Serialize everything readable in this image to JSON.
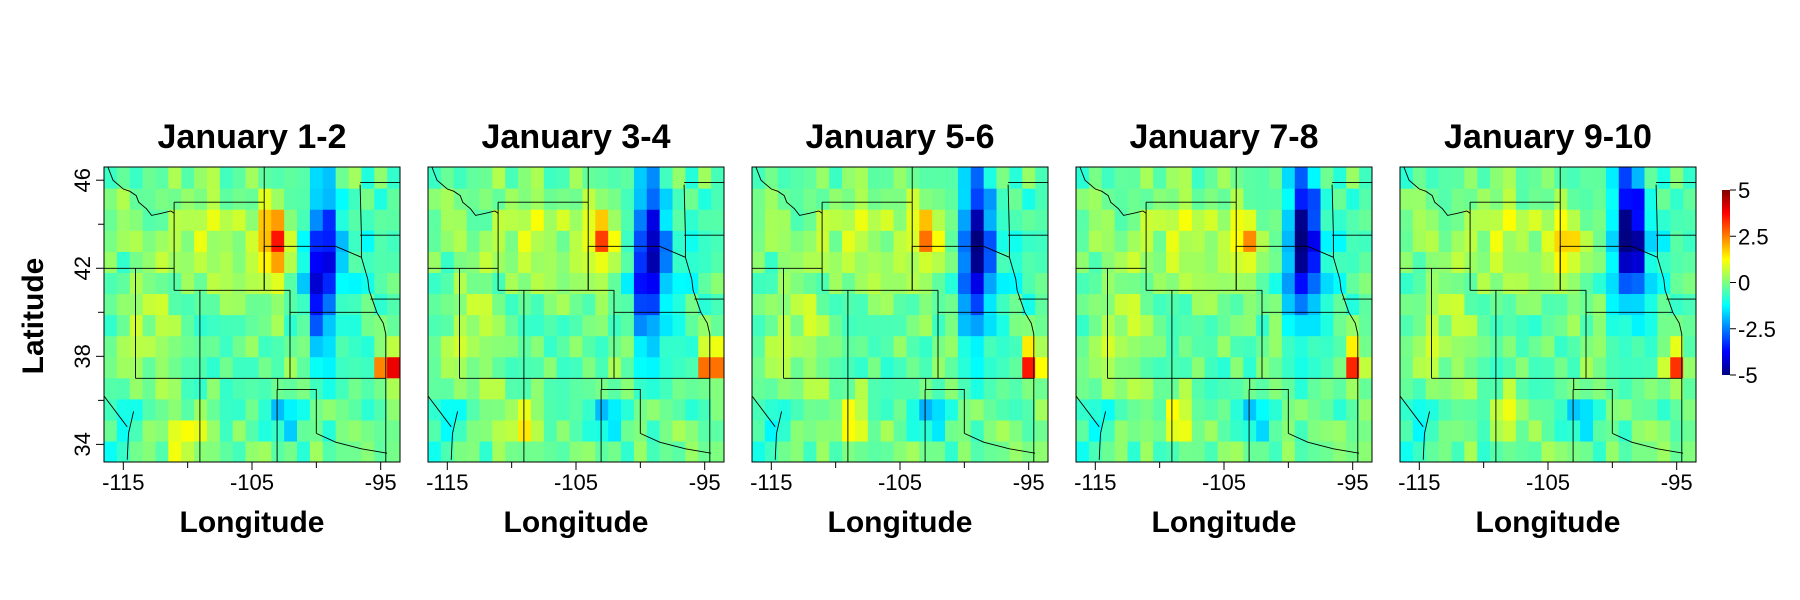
{
  "chart_data": {
    "type": "heatmap",
    "colorbar": {
      "min": -5,
      "max": 5,
      "ticks": [
        "5",
        "2.5",
        "0",
        "-2.5",
        "-5"
      ],
      "colors": [
        "#00007f",
        "#0000ff",
        "#007fff",
        "#00ffff",
        "#7fff7f",
        "#ffff00",
        "#ff7f00",
        "#ff0000",
        "#7f0000"
      ]
    },
    "xlim": [
      -116.5,
      -93.5
    ],
    "ylim": [
      33.2,
      46.6
    ],
    "xlabel": "Longitude",
    "ylabel": "Latitude",
    "x_ticks": [
      -115,
      -105,
      -95
    ],
    "x_tick_labels": [
      "-115",
      "-105",
      "-95"
    ],
    "y_ticks": [
      34,
      38,
      42,
      46
    ],
    "y_tick_labels": [
      "34",
      "38",
      "42",
      "46"
    ],
    "grid": {
      "lon_min": -116.5,
      "lon_max": -93.5,
      "lat_min": 33.2,
      "lat_max": 46.6,
      "cols": 23,
      "rows": 14
    },
    "panels": [
      {
        "title": "January 1-2",
        "features": [
          {
            "kind": "warm_streak",
            "lon": -103.2,
            "lat": 43.2,
            "amp": 3.8,
            "sx": 0.9,
            "sy": 1.6
          },
          {
            "kind": "cold_band",
            "lon": -99.5,
            "lat": 42.0,
            "amp": -4.2,
            "sx": 1.3,
            "sy": 3.6
          },
          {
            "kind": "warm_spot",
            "lon": -94.3,
            "lat": 37.6,
            "amp": 4.6,
            "sx": 0.9,
            "sy": 0.8
          },
          {
            "kind": "warm_patch",
            "lon": -110.0,
            "lat": 34.3,
            "amp": 1.8,
            "sx": 1.5,
            "sy": 1.0
          },
          {
            "kind": "cold_patch",
            "lon": -102.5,
            "lat": 35.3,
            "amp": -1.8,
            "sx": 1.2,
            "sy": 1.0
          }
        ]
      },
      {
        "title": "January 3-4",
        "features": [
          {
            "kind": "warm_streak",
            "lon": -103.0,
            "lat": 43.4,
            "amp": 3.2,
            "sx": 0.9,
            "sy": 1.3
          },
          {
            "kind": "cold_band",
            "lon": -99.2,
            "lat": 42.3,
            "amp": -4.5,
            "sx": 1.3,
            "sy": 3.8
          },
          {
            "kind": "warm_spot",
            "lon": -94.5,
            "lat": 37.8,
            "amp": 4.4,
            "sx": 0.8,
            "sy": 0.9
          },
          {
            "kind": "warm_patch",
            "lon": -109.5,
            "lat": 34.8,
            "amp": 1.6,
            "sx": 1.4,
            "sy": 1.2
          },
          {
            "kind": "cold_patch",
            "lon": -102.5,
            "lat": 35.3,
            "amp": -1.8,
            "sx": 1.2,
            "sy": 1.0
          }
        ]
      },
      {
        "title": "January 5-6",
        "features": [
          {
            "kind": "warm_streak",
            "lon": -103.0,
            "lat": 43.5,
            "amp": 2.9,
            "sx": 0.9,
            "sy": 1.2
          },
          {
            "kind": "cold_band",
            "lon": -99.0,
            "lat": 42.6,
            "amp": -4.7,
            "sx": 1.2,
            "sy": 3.8
          },
          {
            "kind": "warm_spot",
            "lon": -94.8,
            "lat": 37.8,
            "amp": 4.3,
            "sx": 0.8,
            "sy": 0.9
          },
          {
            "kind": "warm_patch",
            "lon": -109.0,
            "lat": 35.0,
            "amp": 1.5,
            "sx": 1.4,
            "sy": 1.2
          },
          {
            "kind": "cold_patch",
            "lon": -102.5,
            "lat": 35.3,
            "amp": -1.8,
            "sx": 1.2,
            "sy": 1.0
          }
        ]
      },
      {
        "title": "January 7-8",
        "features": [
          {
            "kind": "warm_streak",
            "lon": -103.3,
            "lat": 43.3,
            "amp": 2.7,
            "sx": 0.8,
            "sy": 1.2
          },
          {
            "kind": "cold_band",
            "lon": -98.8,
            "lat": 43.0,
            "amp": -4.9,
            "sx": 1.2,
            "sy": 3.6
          },
          {
            "kind": "warm_spot",
            "lon": -95.0,
            "lat": 37.8,
            "amp": 4.0,
            "sx": 0.8,
            "sy": 0.9
          },
          {
            "kind": "warm_patch",
            "lon": -108.5,
            "lat": 35.2,
            "amp": 1.4,
            "sx": 1.4,
            "sy": 1.2
          },
          {
            "kind": "cold_patch",
            "lon": -102.5,
            "lat": 35.3,
            "amp": -1.8,
            "sx": 1.2,
            "sy": 1.0
          }
        ]
      },
      {
        "title": "January 9-10",
        "features": [
          {
            "kind": "warm_streak",
            "lon": -103.5,
            "lat": 43.2,
            "amp": 2.5,
            "sx": 0.8,
            "sy": 1.2
          },
          {
            "kind": "cold_band",
            "lon": -98.6,
            "lat": 43.4,
            "amp": -5.0,
            "sx": 1.2,
            "sy": 3.4
          },
          {
            "kind": "warm_spot",
            "lon": -95.2,
            "lat": 37.7,
            "amp": 3.7,
            "sx": 0.8,
            "sy": 0.9
          },
          {
            "kind": "warm_patch",
            "lon": -108.0,
            "lat": 35.4,
            "amp": 1.3,
            "sx": 1.4,
            "sy": 1.2
          },
          {
            "kind": "cold_patch",
            "lon": -102.5,
            "lat": 35.3,
            "amp": -1.8,
            "sx": 1.2,
            "sy": 1.0
          }
        ]
      }
    ]
  }
}
